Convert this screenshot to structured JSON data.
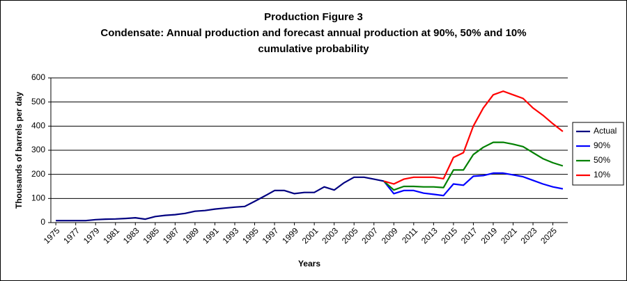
{
  "chart_data": {
    "type": "line",
    "title": "Production Figure 3",
    "subtitle": [
      "Condensate: Annual production and forecast annual production at 90%, 50% and 10%",
      "cumulative probability"
    ],
    "x_label": "Years",
    "y_label": "Thousands of barrels per day",
    "categories": [
      "1975",
      null,
      "1977",
      null,
      "1979",
      null,
      "1981",
      null,
      "1983",
      null,
      "1985",
      null,
      "1987",
      null,
      "1989",
      null,
      "1991",
      null,
      "1993",
      null,
      "1995",
      null,
      "1997",
      null,
      "1999",
      null,
      "2001",
      null,
      "2003",
      null,
      "2005",
      null,
      "2007",
      null,
      "2009",
      null,
      "2011",
      null,
      "2013",
      null,
      "2015",
      null,
      "2017",
      null,
      "2019",
      null,
      "2021",
      null,
      "2023",
      null,
      "2025",
      null
    ],
    "series": [
      {
        "name": "Actual",
        "color": "#000080",
        "values": [
          8,
          8,
          8,
          8,
          12,
          14,
          15,
          17,
          20,
          14,
          25,
          30,
          33,
          38,
          47,
          50,
          56,
          60,
          64,
          67,
          88,
          110,
          133,
          133,
          120,
          125,
          125,
          148,
          135,
          165,
          188,
          188,
          180,
          172,
          null,
          null,
          null,
          null,
          null,
          null,
          null,
          null,
          null,
          null,
          null,
          null,
          null,
          null,
          null,
          null,
          null,
          null
        ]
      },
      {
        "name": "90%",
        "color": "#0000ff",
        "values": [
          null,
          null,
          null,
          null,
          null,
          null,
          null,
          null,
          null,
          null,
          null,
          null,
          null,
          null,
          null,
          null,
          null,
          null,
          null,
          null,
          null,
          null,
          null,
          null,
          null,
          null,
          null,
          null,
          null,
          null,
          null,
          null,
          null,
          172,
          120,
          133,
          133,
          122,
          117,
          112,
          160,
          155,
          192,
          195,
          205,
          205,
          198,
          190,
          175,
          160,
          148,
          140
        ]
      },
      {
        "name": "50%",
        "color": "#008000",
        "values": [
          null,
          null,
          null,
          null,
          null,
          null,
          null,
          null,
          null,
          null,
          null,
          null,
          null,
          null,
          null,
          null,
          null,
          null,
          null,
          null,
          null,
          null,
          null,
          null,
          null,
          null,
          null,
          null,
          null,
          null,
          null,
          null,
          null,
          172,
          135,
          150,
          150,
          148,
          148,
          145,
          218,
          218,
          282,
          312,
          333,
          333,
          325,
          315,
          290,
          265,
          248,
          235
        ]
      },
      {
        "name": "10%",
        "color": "#ff0000",
        "values": [
          null,
          null,
          null,
          null,
          null,
          null,
          null,
          null,
          null,
          null,
          null,
          null,
          null,
          null,
          null,
          null,
          null,
          null,
          null,
          null,
          null,
          null,
          null,
          null,
          null,
          null,
          null,
          null,
          null,
          null,
          null,
          null,
          null,
          172,
          160,
          180,
          188,
          188,
          188,
          182,
          270,
          290,
          400,
          475,
          530,
          545,
          530,
          515,
          475,
          445,
          410,
          378
        ]
      }
    ],
    "ylim": [
      0,
      600
    ],
    "yticks": [
      0,
      100,
      200,
      300,
      400,
      500,
      600
    ],
    "grid": true,
    "legend": "right"
  }
}
